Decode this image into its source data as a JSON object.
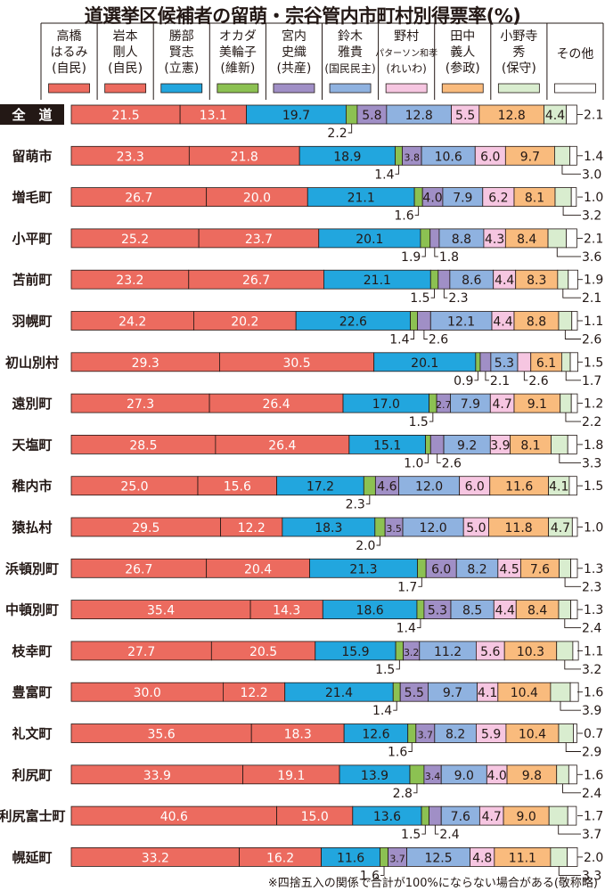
{
  "chart_data": {
    "type": "bar",
    "orientation": "horizontal",
    "stacked": true,
    "title": "道選挙区候補者の留萌・宗谷管内市町村別得票率(%)",
    "note": "※四捨五入の関係で合計が100%にならない場合がある(敬称略)",
    "xlim": [
      0,
      100
    ],
    "grid": false,
    "legend": "top",
    "colors": [
      "#ec6b5f",
      "#ec6b5f",
      "#22a6de",
      "#8cc152",
      "#a08fc6",
      "#8fb2e0",
      "#f6c6e1",
      "#f9bb7d",
      "#d9edcf",
      "#ffffff"
    ],
    "series": [
      {
        "name": [
          "高橋",
          "はるみ",
          "(自民)"
        ]
      },
      {
        "name": [
          "岩本",
          "剛人",
          "(自民)"
        ]
      },
      {
        "name": [
          "勝部",
          "賢志",
          "(立憲)"
        ]
      },
      {
        "name": [
          "オカダ",
          "美輪子",
          "(維新)"
        ]
      },
      {
        "name": [
          "宮内",
          "史織",
          "(共産)"
        ]
      },
      {
        "name": [
          "鈴木",
          "雅貴",
          "(国民民主)"
        ]
      },
      {
        "name": [
          "野村",
          "パターソン和孝",
          "(れいわ)"
        ]
      },
      {
        "name": [
          "田中",
          "義人",
          "(参政)"
        ]
      },
      {
        "name": [
          "小野寺",
          "秀",
          "(保守)"
        ]
      },
      {
        "name": [
          "その他"
        ]
      }
    ],
    "categories": [
      "全　道",
      "留萌市",
      "増毛町",
      "小平町",
      "苫前町",
      "羽幌町",
      "初山別村",
      "遠別町",
      "天塩町",
      "稚内市",
      "猿払村",
      "浜頓別町",
      "中頓別町",
      "枝幸町",
      "豊富町",
      "礼文町",
      "利尻町",
      "利尻富士町",
      "幌延町"
    ],
    "values": [
      [
        21.5,
        13.1,
        19.7,
        2.2,
        5.8,
        12.8,
        5.5,
        12.8,
        4.4,
        2.1
      ],
      [
        23.3,
        21.8,
        18.9,
        1.4,
        3.8,
        10.6,
        6.0,
        9.7,
        3.0,
        1.4
      ],
      [
        26.7,
        20.0,
        21.1,
        1.6,
        4.0,
        7.9,
        6.2,
        8.1,
        3.2,
        1.0
      ],
      [
        25.2,
        23.7,
        20.1,
        1.9,
        1.8,
        8.8,
        4.3,
        8.4,
        3.6,
        2.1
      ],
      [
        23.2,
        26.7,
        21.1,
        1.5,
        2.3,
        8.6,
        4.4,
        8.3,
        2.1,
        1.9
      ],
      [
        24.2,
        20.2,
        22.6,
        1.4,
        2.6,
        12.1,
        4.4,
        8.8,
        2.6,
        1.1
      ],
      [
        29.3,
        30.5,
        20.1,
        0.9,
        2.1,
        5.3,
        2.6,
        6.1,
        1.7,
        1.5
      ],
      [
        27.3,
        26.4,
        17.0,
        1.5,
        2.7,
        7.9,
        4.7,
        9.1,
        2.2,
        1.2
      ],
      [
        28.5,
        26.4,
        15.1,
        1.0,
        2.6,
        9.2,
        3.9,
        8.1,
        3.3,
        1.8
      ],
      [
        25.0,
        15.6,
        17.2,
        2.3,
        4.6,
        12.0,
        6.0,
        11.6,
        4.1,
        1.5
      ],
      [
        29.5,
        12.2,
        18.3,
        2.0,
        3.5,
        12.0,
        5.0,
        11.8,
        4.7,
        1.0
      ],
      [
        26.7,
        20.4,
        21.3,
        1.7,
        6.0,
        8.2,
        4.5,
        7.6,
        2.3,
        1.3
      ],
      [
        35.4,
        14.3,
        18.6,
        1.4,
        5.3,
        8.5,
        4.4,
        8.4,
        2.4,
        1.3
      ],
      [
        27.7,
        20.5,
        15.9,
        1.5,
        3.2,
        11.2,
        5.6,
        10.3,
        3.2,
        1.1
      ],
      [
        30.0,
        12.2,
        21.4,
        1.4,
        5.5,
        9.7,
        4.1,
        10.4,
        3.9,
        1.6
      ],
      [
        35.6,
        18.3,
        12.6,
        1.6,
        3.7,
        8.2,
        5.9,
        10.4,
        2.9,
        0.7
      ],
      [
        33.9,
        19.1,
        13.9,
        2.8,
        3.4,
        9.0,
        4.0,
        9.8,
        2.4,
        1.6
      ],
      [
        40.6,
        15.0,
        13.6,
        1.5,
        2.4,
        7.6,
        4.7,
        9.0,
        3.7,
        1.7
      ],
      [
        33.2,
        16.2,
        11.6,
        1.6,
        3.7,
        12.5,
        4.8,
        11.1,
        3.3,
        2.0
      ]
    ]
  }
}
